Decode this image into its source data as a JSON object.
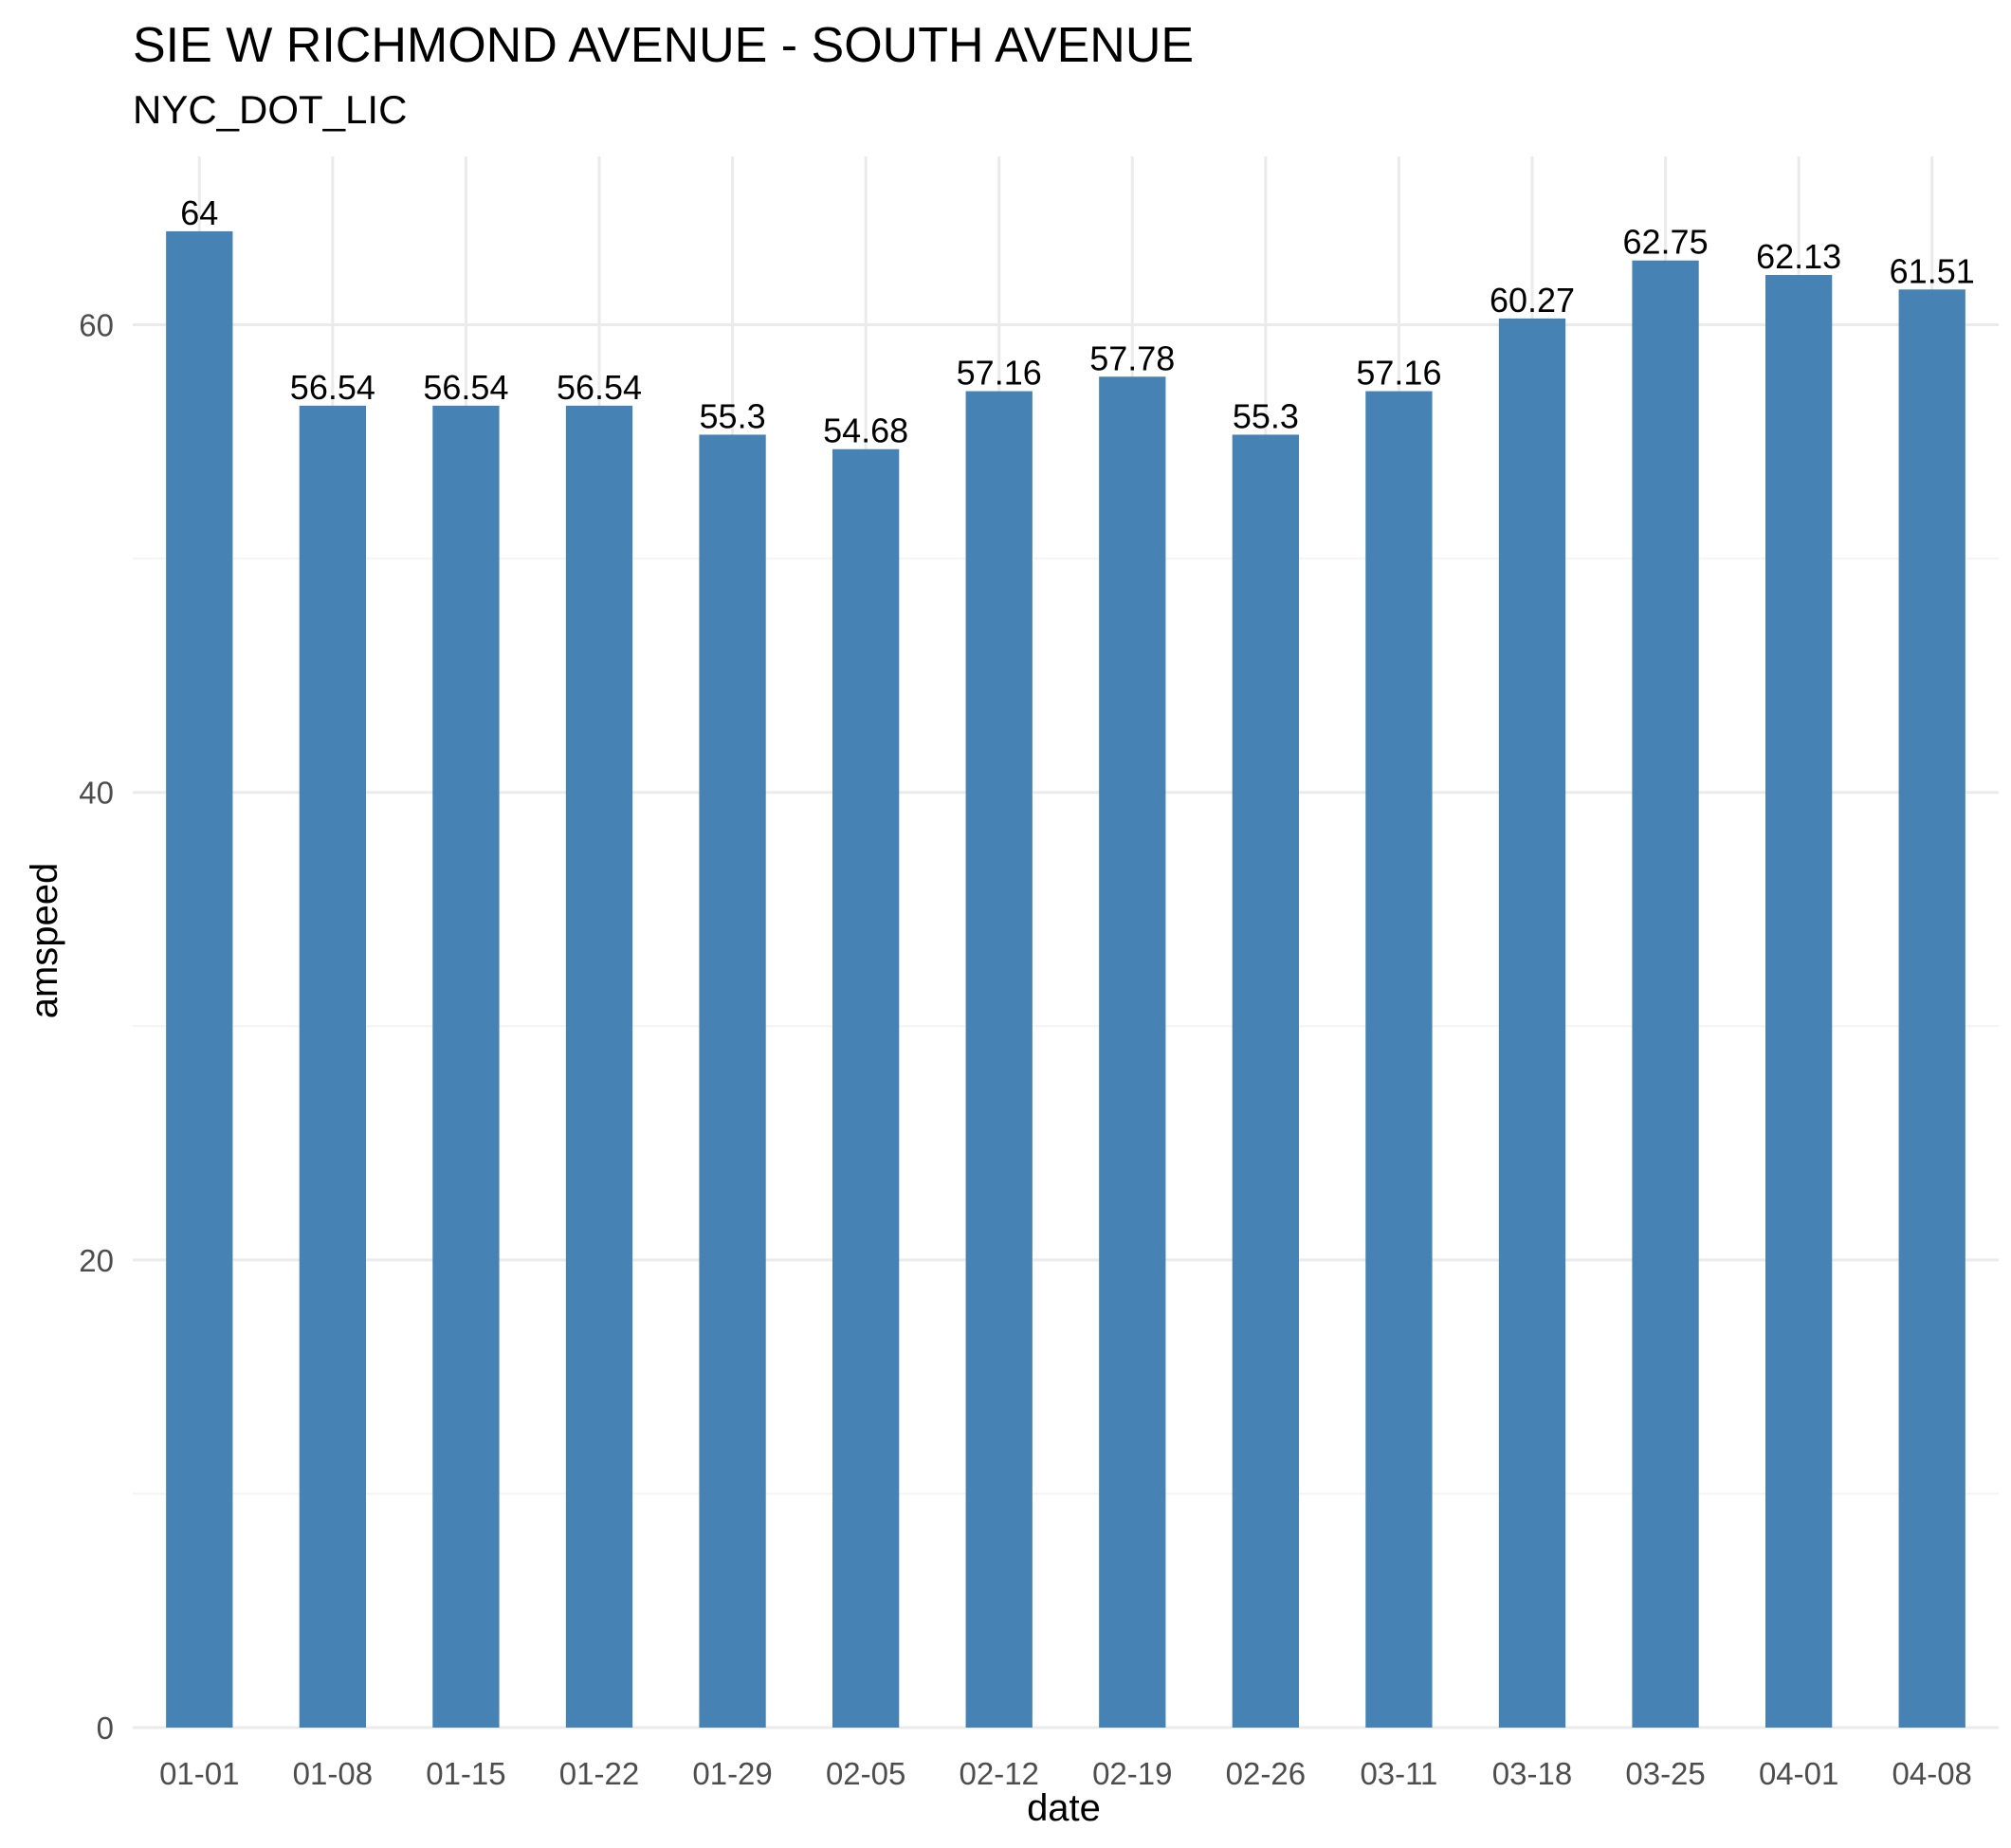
{
  "chart_data": {
    "type": "bar",
    "title": "SIE W RICHMOND AVENUE - SOUTH AVENUE",
    "subtitle": "NYC_DOT_LIC",
    "xlabel": "date",
    "ylabel": "amspeed",
    "categories": [
      "01-01",
      "01-08",
      "01-15",
      "01-22",
      "01-29",
      "02-05",
      "02-12",
      "02-19",
      "02-26",
      "03-11",
      "03-18",
      "03-25",
      "04-01",
      "04-08"
    ],
    "values": [
      64,
      56.54,
      56.54,
      56.54,
      55.3,
      54.68,
      57.16,
      57.78,
      55.3,
      57.16,
      60.27,
      62.75,
      62.13,
      61.51
    ],
    "data_labels": [
      "64",
      "56.54",
      "56.54",
      "56.54",
      "55.3",
      "54.68",
      "57.16",
      "57.78",
      "55.3",
      "57.16",
      "60.27",
      "62.75",
      "62.13",
      "61.51"
    ],
    "ylim": [
      0,
      67.2
    ],
    "yticks": [
      0,
      20,
      40,
      60
    ],
    "ytick_labels": [
      "0",
      "20",
      "40",
      "60"
    ],
    "grid": true,
    "legend": "none",
    "bar_color": "#4682b4"
  }
}
